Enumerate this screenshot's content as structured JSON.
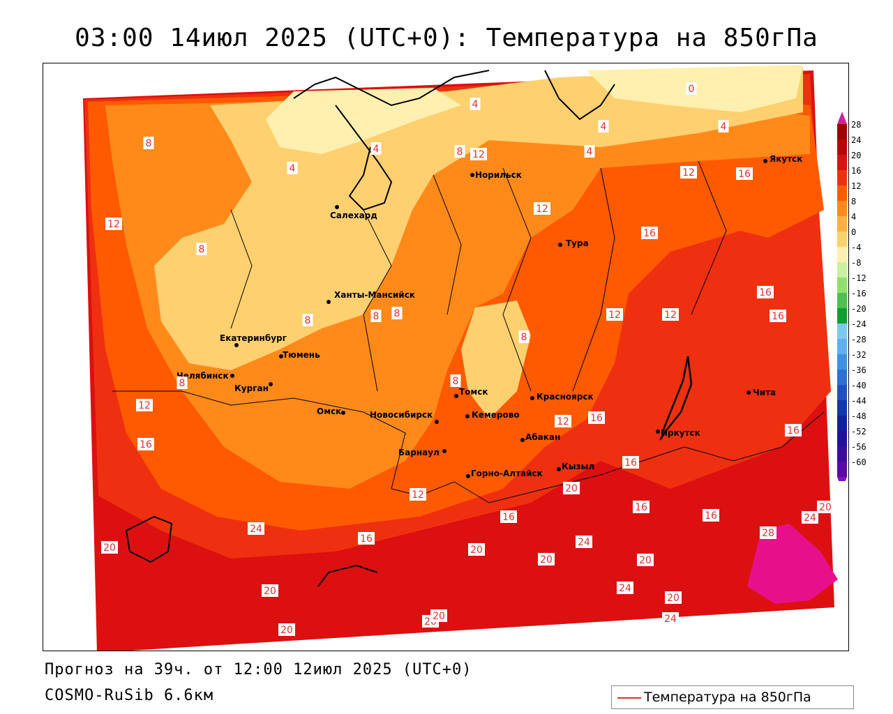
{
  "title": "03:00 14июл 2025 (UTC+0): Температура на 850гПа",
  "forecast_text": "Прогноз на 39ч. от 12:00 12июл 2025 (UTC+0)",
  "model_text": "COSMO-RuSib 6.6км",
  "legend": {
    "label": "Температура на 850гПа",
    "line_color": "#e03030"
  },
  "colorbar": {
    "ticks": [
      "28",
      "24",
      "20",
      "16",
      "12",
      "8",
      "4",
      "0",
      "-4",
      "-8",
      "-12",
      "-16",
      "-20",
      "-24",
      "-28",
      "-32",
      "-36",
      "-40",
      "-44",
      "-48",
      "-52",
      "-56",
      "-60"
    ],
    "colors": [
      "#a00000",
      "#c00000",
      "#dc1010",
      "#ee3010",
      "#ff5a00",
      "#ff8a1a",
      "#ffb040",
      "#ffd070",
      "#fff0b0",
      "#c8f0a0",
      "#90e070",
      "#50c050",
      "#10a030",
      "#80c8f0",
      "#60b0f0",
      "#4090e0",
      "#3070d0",
      "#2050c0",
      "#1038b0",
      "#1020a0",
      "#2010a0",
      "#3a0c9a",
      "#5a0aa0"
    ],
    "top_arrow_color": "#d020a0",
    "bottom_arrow_color": "#8010c0"
  },
  "cities": [
    {
      "name": "Норильск"
    },
    {
      "name": "Якутск"
    },
    {
      "name": "Салехард"
    },
    {
      "name": "Тура"
    },
    {
      "name": "Ханты-Мансийск"
    },
    {
      "name": "Екатеринбург"
    },
    {
      "name": "Тюмень"
    },
    {
      "name": "Челябинск"
    },
    {
      "name": "Курган"
    },
    {
      "name": "Омск"
    },
    {
      "name": "Новосибирск"
    },
    {
      "name": "Томск"
    },
    {
      "name": "Кемерово"
    },
    {
      "name": "Красноярск"
    },
    {
      "name": "Барнаул"
    },
    {
      "name": "Абакан"
    },
    {
      "name": "Горно-Алтайск"
    },
    {
      "name": "Кызыл"
    },
    {
      "name": "Иркутск"
    },
    {
      "name": "Чита"
    }
  ],
  "isotherm_labels": [
    "0",
    "4",
    "4",
    "4",
    "4",
    "4",
    "4",
    "8",
    "8",
    "8",
    "8",
    "8",
    "8",
    "8",
    "8",
    "8",
    "12",
    "12",
    "12",
    "12",
    "12",
    "12",
    "12",
    "12",
    "12",
    "16",
    "16",
    "16",
    "16",
    "16",
    "16",
    "16",
    "16",
    "16",
    "16",
    "16",
    "16",
    "20",
    "20",
    "20",
    "20",
    "20",
    "20",
    "20",
    "20",
    "20",
    "20",
    "20",
    "24",
    "24",
    "24",
    "24",
    "24",
    "28"
  ],
  "zone_colors": {
    "t_0_4": "#fff0b0",
    "t_4_8": "#ffd070",
    "t_8_12": "#ff8a1a",
    "t_12_16": "#ff5a00",
    "t_16_20": "#ee3010",
    "t_20_24": "#dc1010",
    "t_24_28": "#b00000",
    "t_28_plus": "#e8108a"
  }
}
